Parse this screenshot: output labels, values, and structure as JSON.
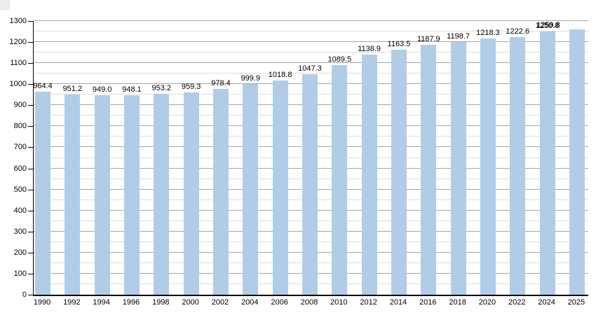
{
  "chart_data": {
    "type": "bar",
    "title": "",
    "xlabel": "",
    "ylabel": "",
    "categories": [
      "1990",
      "1992",
      "1994",
      "1996",
      "1998",
      "2000",
      "2002",
      "2004",
      "2006",
      "2008",
      "2010",
      "2012",
      "2014",
      "2016",
      "2018",
      "2020",
      "2022",
      "2024",
      "2025"
    ],
    "values": [
      964.4,
      951.2,
      949.0,
      948.1,
      953.2,
      959.3,
      978.4,
      999.9,
      1018.8,
      1047.3,
      1089.5,
      1138.9,
      1163.5,
      1187.9,
      1198.7,
      1218.3,
      1222.6,
      1250.8,
      1259.8
    ],
    "value_labels": [
      "964.4",
      "951.2",
      "949.0",
      "948.1",
      "953.2",
      "959.3",
      "978.4",
      "999.9",
      "1018.8",
      "1047.3",
      "1089.5",
      "1138.9",
      "1163.5",
      "1187.9",
      "1198.7",
      "1218.3",
      "1222.6",
      "1250.8",
      "1259.8"
    ],
    "y_tick_labels": [
      "0",
      "100",
      "200",
      "300",
      "400",
      "500",
      "600",
      "700",
      "800",
      "900",
      "1000",
      "1100",
      "1200",
      "1300"
    ],
    "ylim": [
      0,
      1300
    ],
    "y_major_step": 100,
    "y_minor_step": 50,
    "grid": true,
    "legend": false,
    "last_value_label_overlaps_previous": true,
    "colors": {
      "bar": "#b1cce7",
      "major_grid": "#a6a6a6",
      "minor_grid": "#dddddd",
      "axis": "#000000",
      "text": "#000000",
      "background": "#ffffff"
    }
  }
}
